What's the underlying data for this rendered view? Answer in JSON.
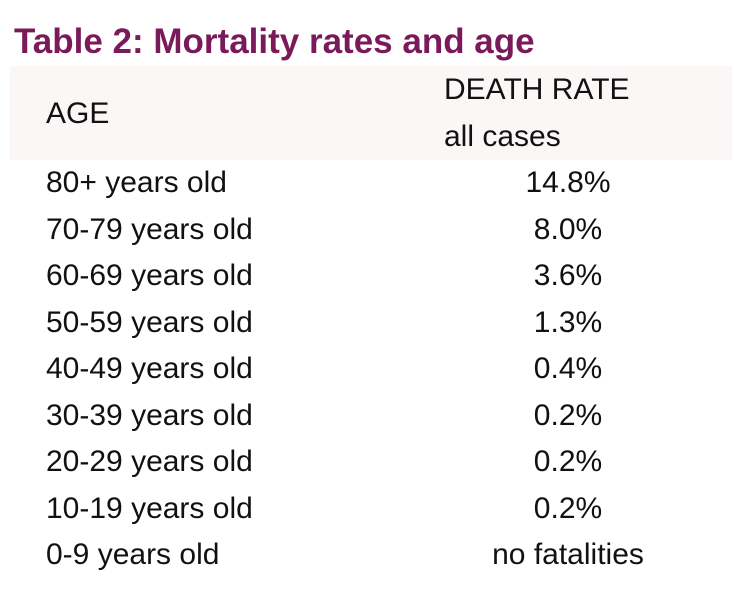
{
  "title": "Table 2: Mortality rates and age",
  "table": {
    "header": {
      "age": "AGE",
      "rate": "DEATH RATE",
      "rate_sub": "all cases"
    },
    "rows": [
      {
        "age": "80+ years old",
        "rate": "14.8%"
      },
      {
        "age": "70-79 years old",
        "rate": "8.0%"
      },
      {
        "age": "60-69 years old",
        "rate": "3.6%"
      },
      {
        "age": "50-59 years old",
        "rate": "1.3%"
      },
      {
        "age": "40-49 years old",
        "rate": "0.4%"
      },
      {
        "age": "30-39 years old",
        "rate": "0.2%"
      },
      {
        "age": "20-29 years old",
        "rate": "0.2%"
      },
      {
        "age": "10-19 years old",
        "rate": "0.2%"
      },
      {
        "age": "0-9 years old",
        "rate": "no fatalities"
      }
    ]
  },
  "colors": {
    "title": "#7a1a5a",
    "header_band": "#fbf7f6",
    "text": "#111111"
  }
}
